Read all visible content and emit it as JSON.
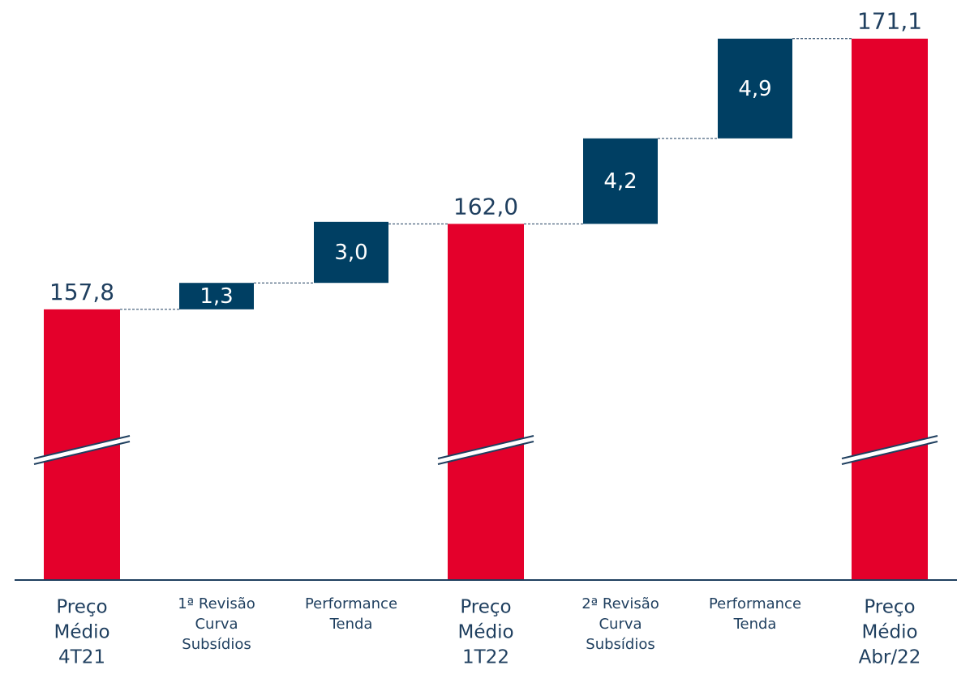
{
  "chart_data": {
    "type": "waterfall",
    "categories": [
      [
        "Preço",
        "Médio",
        "4T21"
      ],
      [
        "1ª Revisão",
        "Curva",
        "Subsídios"
      ],
      [
        "Performance",
        "Tenda"
      ],
      [
        "Preço",
        "Médio",
        "1T22"
      ],
      [
        "2ª Revisão",
        "Curva",
        "Subsídios"
      ],
      [
        "Performance",
        "Tenda"
      ],
      [
        "Preço",
        "Médio",
        "Abr/22"
      ]
    ],
    "measures": [
      "total",
      "relative",
      "relative",
      "total",
      "relative",
      "relative",
      "total"
    ],
    "values": [
      157.8,
      1.3,
      3.0,
      162.0,
      4.2,
      4.9,
      171.1
    ],
    "value_labels": [
      "157,8",
      "1,3",
      "3,0",
      "162,0",
      "4,2",
      "4,9",
      "171,1"
    ],
    "colors": {
      "total": "#e4002b",
      "relative": "#003f63"
    },
    "ylim": [
      144.5,
      173
    ],
    "broken_axis": true
  }
}
